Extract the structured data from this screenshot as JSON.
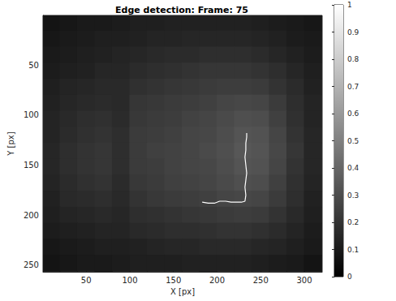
{
  "chart_data": {
    "type": "heatmap",
    "title": "Edge detection: Frame: 75",
    "x_label": "X [px]",
    "y_label": "Y [px]",
    "xlim": [
      0.5,
      320.5
    ],
    "ylim": [
      0.5,
      256.5
    ],
    "xticks": [
      50,
      100,
      150,
      200,
      250,
      300
    ],
    "yticks": [
      50,
      100,
      150,
      200,
      250
    ],
    "grid": false,
    "cell_x": [
      10,
      30,
      50,
      70,
      90,
      110,
      130,
      150,
      170,
      190,
      210,
      230,
      250,
      270,
      290,
      310
    ],
    "cell_y": [
      8,
      24,
      40,
      56,
      72,
      88,
      104,
      120,
      136,
      152,
      168,
      184,
      200,
      216,
      232,
      248
    ],
    "cells": [
      [
        0.08,
        0.09,
        0.1,
        0.1,
        0.11,
        0.12,
        0.12,
        0.13,
        0.13,
        0.13,
        0.13,
        0.13,
        0.12,
        0.11,
        0.1,
        0.09
      ],
      [
        0.09,
        0.1,
        0.11,
        0.12,
        0.12,
        0.13,
        0.14,
        0.14,
        0.15,
        0.15,
        0.15,
        0.15,
        0.14,
        0.13,
        0.11,
        0.1
      ],
      [
        0.1,
        0.11,
        0.12,
        0.13,
        0.14,
        0.15,
        0.16,
        0.17,
        0.17,
        0.18,
        0.18,
        0.18,
        0.17,
        0.15,
        0.13,
        0.11
      ],
      [
        0.11,
        0.12,
        0.13,
        0.15,
        0.15,
        0.17,
        0.18,
        0.19,
        0.2,
        0.21,
        0.21,
        0.21,
        0.2,
        0.18,
        0.15,
        0.12
      ],
      [
        0.12,
        0.14,
        0.15,
        0.16,
        0.16,
        0.19,
        0.2,
        0.21,
        0.22,
        0.23,
        0.24,
        0.24,
        0.23,
        0.2,
        0.17,
        0.13
      ],
      [
        0.13,
        0.15,
        0.16,
        0.17,
        0.16,
        0.21,
        0.22,
        0.23,
        0.24,
        0.25,
        0.27,
        0.28,
        0.27,
        0.23,
        0.18,
        0.14
      ],
      [
        0.14,
        0.16,
        0.18,
        0.19,
        0.17,
        0.22,
        0.23,
        0.24,
        0.26,
        0.27,
        0.29,
        0.31,
        0.3,
        0.25,
        0.19,
        0.14
      ],
      [
        0.14,
        0.17,
        0.19,
        0.2,
        0.18,
        0.23,
        0.24,
        0.25,
        0.27,
        0.28,
        0.3,
        0.33,
        0.32,
        0.27,
        0.2,
        0.15
      ],
      [
        0.15,
        0.18,
        0.2,
        0.21,
        0.18,
        0.23,
        0.25,
        0.26,
        0.27,
        0.29,
        0.31,
        0.34,
        0.33,
        0.28,
        0.21,
        0.15
      ],
      [
        0.15,
        0.18,
        0.2,
        0.21,
        0.18,
        0.23,
        0.24,
        0.26,
        0.27,
        0.28,
        0.3,
        0.33,
        0.32,
        0.27,
        0.2,
        0.15
      ],
      [
        0.14,
        0.17,
        0.19,
        0.2,
        0.17,
        0.22,
        0.23,
        0.25,
        0.26,
        0.27,
        0.29,
        0.31,
        0.3,
        0.25,
        0.19,
        0.14
      ],
      [
        0.13,
        0.16,
        0.17,
        0.18,
        0.16,
        0.2,
        0.22,
        0.23,
        0.24,
        0.25,
        0.27,
        0.28,
        0.27,
        0.23,
        0.18,
        0.13
      ],
      [
        0.12,
        0.14,
        0.15,
        0.16,
        0.15,
        0.18,
        0.19,
        0.2,
        0.21,
        0.22,
        0.23,
        0.24,
        0.23,
        0.2,
        0.16,
        0.12
      ],
      [
        0.11,
        0.12,
        0.13,
        0.14,
        0.14,
        0.16,
        0.17,
        0.18,
        0.18,
        0.19,
        0.2,
        0.2,
        0.19,
        0.17,
        0.14,
        0.11
      ],
      [
        0.09,
        0.1,
        0.11,
        0.12,
        0.12,
        0.13,
        0.14,
        0.15,
        0.15,
        0.16,
        0.16,
        0.16,
        0.15,
        0.14,
        0.12,
        0.1
      ],
      [
        0.08,
        0.09,
        0.1,
        0.1,
        0.11,
        0.12,
        0.12,
        0.12,
        0.13,
        0.13,
        0.13,
        0.13,
        0.12,
        0.11,
        0.1,
        0.08
      ]
    ],
    "colorbar": {
      "lim": [
        0,
        1
      ],
      "ticks": [
        0,
        0.1,
        0.2,
        0.3,
        0.4,
        0.5,
        0.6,
        0.7,
        0.8,
        0.9,
        1
      ]
    },
    "series": [
      {
        "type": "line",
        "color": "#ffffff",
        "x": [
          183,
          190,
          197,
          203,
          210,
          216,
          222,
          228,
          232,
          233,
          232,
          233,
          234,
          233,
          232,
          233,
          233,
          234,
          234
        ],
        "values": [
          187,
          188,
          188,
          186,
          186,
          187,
          187,
          187,
          186,
          180,
          172,
          165,
          158,
          150,
          142,
          135,
          128,
          122,
          118
        ]
      }
    ]
  }
}
